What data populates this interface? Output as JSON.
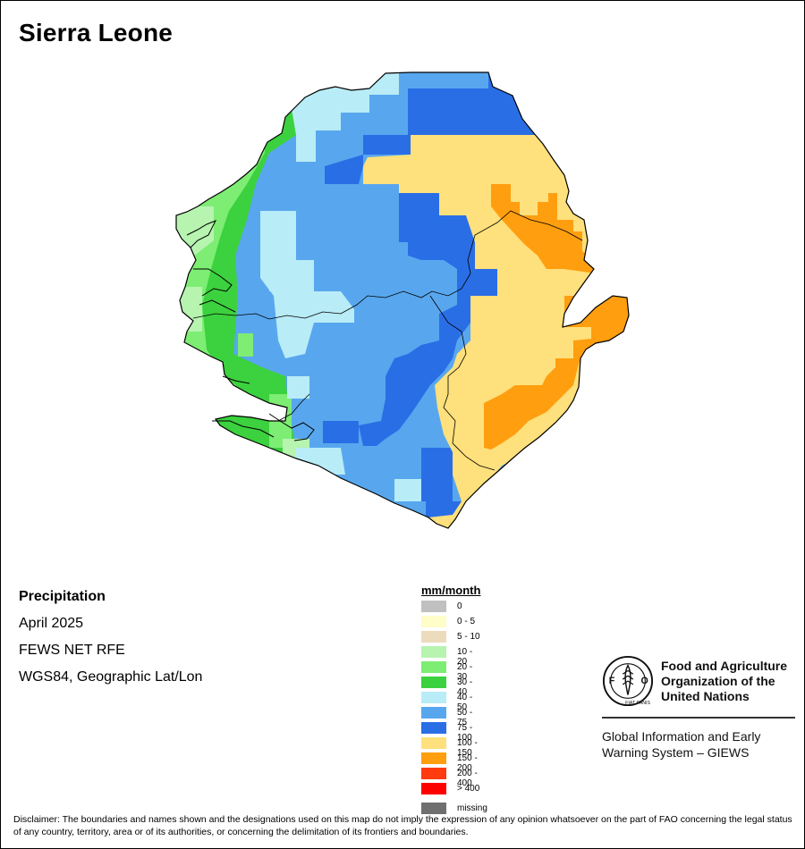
{
  "title": "Sierra Leone",
  "info": {
    "variable": "Precipitation",
    "period": "April 2025",
    "source": "FEWS NET RFE",
    "projection": "WGS84, Geographic Lat/Lon"
  },
  "legend": {
    "title": "mm/month",
    "classes": [
      {
        "label": "0",
        "color": "#c0c0c0"
      },
      {
        "label": "0 - 5",
        "color": "#fffdc8"
      },
      {
        "label": "5 - 10",
        "color": "#ecdcbd"
      },
      {
        "label": "10 - 20",
        "color": "#b6f4b0"
      },
      {
        "label": "20 - 30",
        "color": "#7ded73"
      },
      {
        "label": "30 - 40",
        "color": "#3cd13e"
      },
      {
        "label": "40 - 50",
        "color": "#b8ecf7"
      },
      {
        "label": "50 - 75",
        "color": "#58a7ee"
      },
      {
        "label": "75 - 100",
        "color": "#2a6ee6"
      },
      {
        "label": "100 - 150",
        "color": "#fee07c"
      },
      {
        "label": "150 - 200",
        "color": "#ff9e0f"
      },
      {
        "label": "200 - 400",
        "color": "#ff3b0f"
      },
      {
        "label": "> 400",
        "color": "#ff0000"
      }
    ],
    "missing": {
      "label": "missing",
      "color": "#6f6f6f"
    }
  },
  "organization": {
    "name": "Food and Agriculture\nOrganization of the\nUnited Nations",
    "emblem_text": "FAO",
    "emblem_motto": "FIAT PANIS",
    "system": "Global Information and Early\nWarning System – GIEWS"
  },
  "disclaimer": "Disclaimer: The boundaries and names shown and the designations used on this map do not imply the expression of any opinion whatsoever on the part of FAO concerning the legal status of any country, territory, area or of its authorities, or concerning the delimitation of its frontiers and boundaries."
}
